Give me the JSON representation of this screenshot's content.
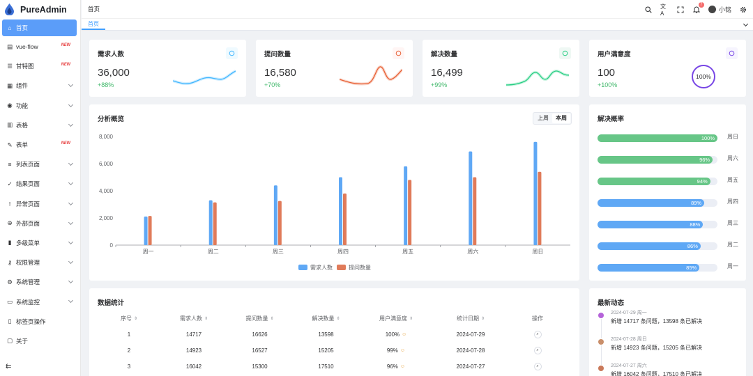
{
  "app": {
    "name": "PureAdmin"
  },
  "sidebar": {
    "items": [
      {
        "label": "首页",
        "icon": "home-icon",
        "active": true,
        "new": false,
        "expand": false
      },
      {
        "label": "vue-flow",
        "icon": "flow-icon",
        "active": false,
        "new": true,
        "expand": false
      },
      {
        "label": "甘特图",
        "icon": "gantt-icon",
        "active": false,
        "new": true,
        "expand": false
      },
      {
        "label": "组件",
        "icon": "grid-icon",
        "active": false,
        "new": false,
        "expand": true
      },
      {
        "label": "功能",
        "icon": "function-icon",
        "active": false,
        "new": false,
        "expand": true
      },
      {
        "label": "表格",
        "icon": "table-icon",
        "active": false,
        "new": false,
        "expand": true
      },
      {
        "label": "表单",
        "icon": "form-icon",
        "active": false,
        "new": true,
        "expand": false
      },
      {
        "label": "列表页面",
        "icon": "list-icon",
        "active": false,
        "new": false,
        "expand": true
      },
      {
        "label": "结果页面",
        "icon": "check-circle-icon",
        "active": false,
        "new": false,
        "expand": true
      },
      {
        "label": "异常页面",
        "icon": "warning-icon",
        "active": false,
        "new": false,
        "expand": true
      },
      {
        "label": "外部页面",
        "icon": "link-icon",
        "active": false,
        "new": false,
        "expand": true
      },
      {
        "label": "多级菜单",
        "icon": "bar-icon",
        "active": false,
        "new": false,
        "expand": true
      },
      {
        "label": "权限管理",
        "icon": "key-icon",
        "active": false,
        "new": false,
        "expand": true
      },
      {
        "label": "系统管理",
        "icon": "gear-icon",
        "active": false,
        "new": false,
        "expand": true
      },
      {
        "label": "系统监控",
        "icon": "monitor-icon",
        "active": false,
        "new": false,
        "expand": true
      },
      {
        "label": "标签页操作",
        "icon": "tag-icon",
        "active": false,
        "new": false,
        "expand": false
      },
      {
        "label": "关于",
        "icon": "info-icon",
        "active": false,
        "new": false,
        "expand": false
      }
    ],
    "new_badge": "NEW"
  },
  "header": {
    "breadcrumb": "首页",
    "username": "小铭",
    "notif_count": "7"
  },
  "tabs": [
    {
      "label": "首页"
    }
  ],
  "stats": [
    {
      "title": "需求人数",
      "value": "36,000",
      "percent": "+88%",
      "color": "#41b6ff",
      "bg": "#effaff",
      "icon": "users-icon"
    },
    {
      "title": "提问数量",
      "value": "16,580",
      "percent": "+70%",
      "color": "#e85f33",
      "bg": "#fff5f4",
      "icon": "question-icon"
    },
    {
      "title": "解决数量",
      "value": "16,499",
      "percent": "+99%",
      "color": "#26ce83",
      "bg": "#eff8f4",
      "icon": "check-icon"
    },
    {
      "title": "用户满意度",
      "value": "100",
      "percent": "+100%",
      "color": "#7846e5",
      "bg": "#f6f4fe",
      "icon": "star-icon",
      "ring": "100%"
    }
  ],
  "overview": {
    "title": "分析概览",
    "toggle": [
      "上周",
      "本周"
    ],
    "active_toggle": "本周"
  },
  "chart_data": {
    "type": "bar",
    "categories": [
      "周一",
      "周二",
      "周三",
      "周四",
      "周五",
      "周六",
      "周日"
    ],
    "series": [
      {
        "name": "需求人数",
        "color": "#5fa8f5",
        "values": [
          2100,
          3300,
          4400,
          5000,
          5800,
          6900,
          7600
        ]
      },
      {
        "name": "提问数量",
        "color": "#e07b5a",
        "values": [
          2150,
          3150,
          3250,
          3800,
          4800,
          5000,
          5400
        ]
      }
    ],
    "yticks": [
      "0",
      "2,000",
      "4,000",
      "6,000",
      "8,000"
    ],
    "ylim": [
      0,
      8000
    ]
  },
  "rate": {
    "title": "解决概率",
    "rows": [
      {
        "value": 100,
        "label": "100%",
        "day": "周日",
        "color": "#67c687"
      },
      {
        "value": 96,
        "label": "96%",
        "day": "周六",
        "color": "#67c687"
      },
      {
        "value": 94,
        "label": "94%",
        "day": "周五",
        "color": "#67c687"
      },
      {
        "value": 89,
        "label": "89%",
        "day": "周四",
        "color": "#5fa8f5"
      },
      {
        "value": 88,
        "label": "88%",
        "day": "周三",
        "color": "#5fa8f5"
      },
      {
        "value": 86,
        "label": "86%",
        "day": "周二",
        "color": "#5fa8f5"
      },
      {
        "value": 85,
        "label": "85%",
        "day": "周一",
        "color": "#5fa8f5"
      }
    ]
  },
  "stats_table": {
    "title": "数据统计",
    "headers": [
      "序号",
      "需求人数",
      "提问数量",
      "解决数量",
      "用户满意度",
      "统计日期",
      "操作"
    ],
    "rows": [
      [
        "1",
        "14717",
        "16626",
        "13598",
        "100%",
        "2024-07-29"
      ],
      [
        "2",
        "14923",
        "16527",
        "15205",
        "99%",
        "2024-07-28"
      ],
      [
        "3",
        "16042",
        "15300",
        "17510",
        "96%",
        "2024-07-27"
      ]
    ]
  },
  "timeline": {
    "title": "最新动态",
    "items": [
      {
        "time": "2024-07-29 周一",
        "text": "新增 14717 条问题，13598 条已解决",
        "color": "#b563d9"
      },
      {
        "time": "2024-07-28 周日",
        "text": "新增 14923 条问题，15205 条已解决",
        "color": "#c98f6b"
      },
      {
        "time": "2024-07-27 周六",
        "text": "新增 16042 条问题，17510 条已解决",
        "color": "#c9795a"
      }
    ]
  }
}
